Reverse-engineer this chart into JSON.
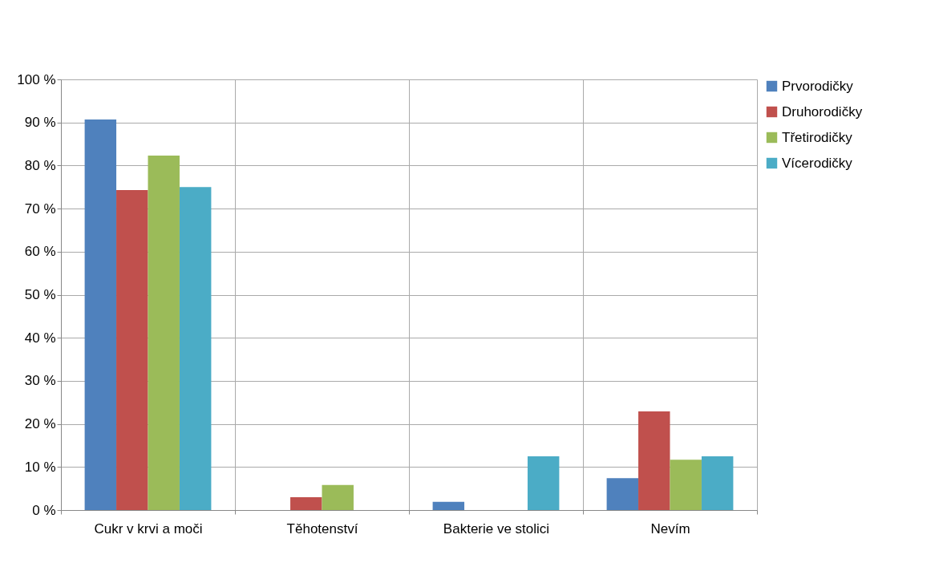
{
  "chart_data": {
    "type": "bar",
    "categories": [
      "Cukr v krvi a moči",
      "Těhotenství",
      "Bakterie ve stolici",
      "Nevím"
    ],
    "series": [
      {
        "name": "Prvorodičky",
        "color": "#4f81bd",
        "values": [
          90.7,
          0,
          1.9,
          7.4
        ]
      },
      {
        "name": "Druhorodičky",
        "color": "#c0504d",
        "values": [
          74.3,
          3.0,
          0,
          22.9
        ]
      },
      {
        "name": "Třetirodičky",
        "color": "#9bbb59",
        "values": [
          82.3,
          5.8,
          0,
          11.7
        ]
      },
      {
        "name": "Vícerodičky",
        "color": "#4bacc6",
        "values": [
          75.0,
          0,
          12.5,
          12.5
        ]
      }
    ],
    "ylim": [
      0,
      100
    ],
    "yticks": [
      {
        "value": 0,
        "label": "0 %"
      },
      {
        "value": 10,
        "label": "10 %"
      },
      {
        "value": 20,
        "label": "20 %"
      },
      {
        "value": 30,
        "label": "30 %"
      },
      {
        "value": 40,
        "label": "40 %"
      },
      {
        "value": 50,
        "label": "50 %"
      },
      {
        "value": 60,
        "label": "60 %"
      },
      {
        "value": 70,
        "label": "70 %"
      },
      {
        "value": 80,
        "label": "80 %"
      },
      {
        "value": 90,
        "label": "90 %"
      },
      {
        "value": 100,
        "label": "100 %"
      }
    ],
    "grid": true,
    "legend": "right"
  }
}
